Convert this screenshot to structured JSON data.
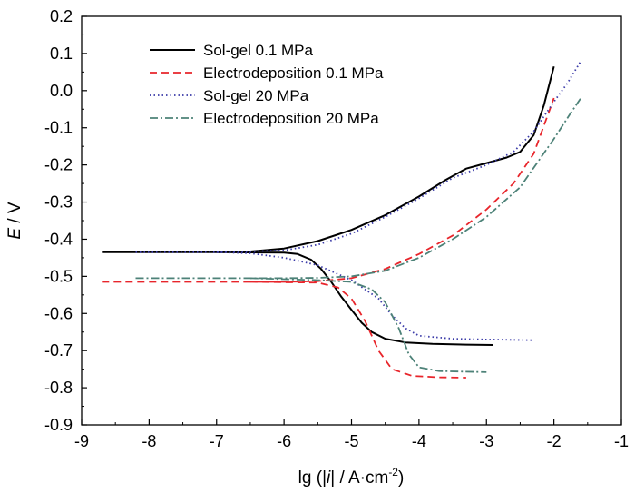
{
  "chart_data": {
    "type": "line",
    "title": "",
    "xlabel": {
      "prefix": "lg (|",
      "italic": "i",
      "suffix": "| / A·cm",
      "sup": "-2",
      "close": ")"
    },
    "ylabel": {
      "italic": "E",
      "suffix": " / V"
    },
    "xlim": [
      -9,
      -1
    ],
    "ylim": [
      -0.9,
      0.2
    ],
    "xticks": [
      -9,
      -8,
      -7,
      -6,
      -5,
      -4,
      -3,
      -2,
      -1
    ],
    "yticks": [
      -0.9,
      -0.8,
      -0.7,
      -0.6,
      -0.5,
      -0.4,
      -0.3,
      -0.2,
      -0.1,
      0.0,
      0.1,
      0.2
    ],
    "xtick_labels": [
      "-9",
      "-8",
      "-7",
      "-6",
      "-5",
      "-4",
      "-3",
      "-2",
      "-1"
    ],
    "ytick_labels": [
      "-0.9",
      "-0.8",
      "-0.7",
      "-0.6",
      "-0.5",
      "-0.4",
      "-0.3",
      "-0.2",
      "-0.1",
      "0.0",
      "0.1",
      "0.2"
    ],
    "grid": false,
    "legend_position": "top-left",
    "series": [
      {
        "name": "Sol-gel 0.1 MPa",
        "color": "#000000",
        "dash": "solid",
        "anodic": [
          [
            -8.7,
            -0.435
          ],
          [
            -7.0,
            -0.435
          ],
          [
            -6.5,
            -0.433
          ],
          [
            -6.0,
            -0.425
          ],
          [
            -5.5,
            -0.405
          ],
          [
            -5.0,
            -0.375
          ],
          [
            -4.5,
            -0.335
          ],
          [
            -4.0,
            -0.285
          ],
          [
            -3.6,
            -0.24
          ],
          [
            -3.3,
            -0.21
          ],
          [
            -3.0,
            -0.195
          ],
          [
            -2.7,
            -0.18
          ],
          [
            -2.5,
            -0.165
          ],
          [
            -2.3,
            -0.12
          ],
          [
            -2.15,
            -0.04
          ],
          [
            -2.05,
            0.03
          ],
          [
            -2.0,
            0.065
          ]
        ],
        "cathodic": [
          [
            -7.0,
            -0.435
          ],
          [
            -6.0,
            -0.436
          ],
          [
            -5.8,
            -0.44
          ],
          [
            -5.6,
            -0.455
          ],
          [
            -5.45,
            -0.48
          ],
          [
            -5.3,
            -0.515
          ],
          [
            -5.15,
            -0.555
          ],
          [
            -5.0,
            -0.59
          ],
          [
            -4.85,
            -0.625
          ],
          [
            -4.7,
            -0.65
          ],
          [
            -4.5,
            -0.668
          ],
          [
            -4.2,
            -0.678
          ],
          [
            -3.8,
            -0.682
          ],
          [
            -3.3,
            -0.684
          ],
          [
            -2.9,
            -0.685
          ]
        ]
      },
      {
        "name": "Electrodeposition 0.1 MPa",
        "color": "#e8252b",
        "dash": "8,5",
        "anodic": [
          [
            -8.7,
            -0.515
          ],
          [
            -6.0,
            -0.515
          ],
          [
            -5.5,
            -0.513
          ],
          [
            -5.0,
            -0.505
          ],
          [
            -4.5,
            -0.48
          ],
          [
            -4.0,
            -0.44
          ],
          [
            -3.5,
            -0.39
          ],
          [
            -3.0,
            -0.32
          ],
          [
            -2.6,
            -0.25
          ],
          [
            -2.3,
            -0.17
          ],
          [
            -2.1,
            -0.07
          ],
          [
            -2.0,
            -0.02
          ]
        ],
        "cathodic": [
          [
            -6.5,
            -0.515
          ],
          [
            -5.5,
            -0.517
          ],
          [
            -5.2,
            -0.53
          ],
          [
            -5.0,
            -0.56
          ],
          [
            -4.8,
            -0.62
          ],
          [
            -4.6,
            -0.7
          ],
          [
            -4.4,
            -0.75
          ],
          [
            -4.1,
            -0.768
          ],
          [
            -3.7,
            -0.772
          ],
          [
            -3.3,
            -0.773
          ]
        ]
      },
      {
        "name": "Sol-gel 20 MPa",
        "color": "#3a3aa8",
        "dash": "1.5,3",
        "anodic": [
          [
            -8.2,
            -0.435
          ],
          [
            -7.0,
            -0.435
          ],
          [
            -6.5,
            -0.433
          ],
          [
            -6.0,
            -0.43
          ],
          [
            -5.5,
            -0.415
          ],
          [
            -5.0,
            -0.385
          ],
          [
            -4.5,
            -0.34
          ],
          [
            -4.0,
            -0.29
          ],
          [
            -3.5,
            -0.235
          ],
          [
            -3.0,
            -0.2
          ],
          [
            -2.6,
            -0.165
          ],
          [
            -2.3,
            -0.11
          ],
          [
            -2.0,
            -0.03
          ],
          [
            -1.8,
            0.02
          ],
          [
            -1.6,
            0.08
          ]
        ],
        "cathodic": [
          [
            -7.0,
            -0.435
          ],
          [
            -6.5,
            -0.438
          ],
          [
            -6.0,
            -0.45
          ],
          [
            -5.5,
            -0.47
          ],
          [
            -5.0,
            -0.51
          ],
          [
            -4.6,
            -0.56
          ],
          [
            -4.4,
            -0.605
          ],
          [
            -4.2,
            -0.64
          ],
          [
            -4.0,
            -0.66
          ],
          [
            -3.5,
            -0.668
          ],
          [
            -3.0,
            -0.67
          ],
          [
            -2.3,
            -0.672
          ]
        ]
      },
      {
        "name": "Electrodeposition 20 MPa",
        "color": "#4d8278",
        "dash": "9,3,2,3",
        "anodic": [
          [
            -8.2,
            -0.505
          ],
          [
            -6.0,
            -0.505
          ],
          [
            -5.5,
            -0.504
          ],
          [
            -5.0,
            -0.5
          ],
          [
            -4.5,
            -0.485
          ],
          [
            -4.0,
            -0.45
          ],
          [
            -3.5,
            -0.4
          ],
          [
            -3.0,
            -0.34
          ],
          [
            -2.5,
            -0.26
          ],
          [
            -2.0,
            -0.13
          ],
          [
            -1.75,
            -0.06
          ],
          [
            -1.6,
            -0.02
          ]
        ],
        "cathodic": [
          [
            -6.5,
            -0.505
          ],
          [
            -5.5,
            -0.51
          ],
          [
            -5.0,
            -0.515
          ],
          [
            -4.7,
            -0.535
          ],
          [
            -4.5,
            -0.57
          ],
          [
            -4.3,
            -0.64
          ],
          [
            -4.15,
            -0.71
          ],
          [
            -4.0,
            -0.745
          ],
          [
            -3.7,
            -0.755
          ],
          [
            -3.0,
            -0.758
          ]
        ]
      }
    ]
  }
}
